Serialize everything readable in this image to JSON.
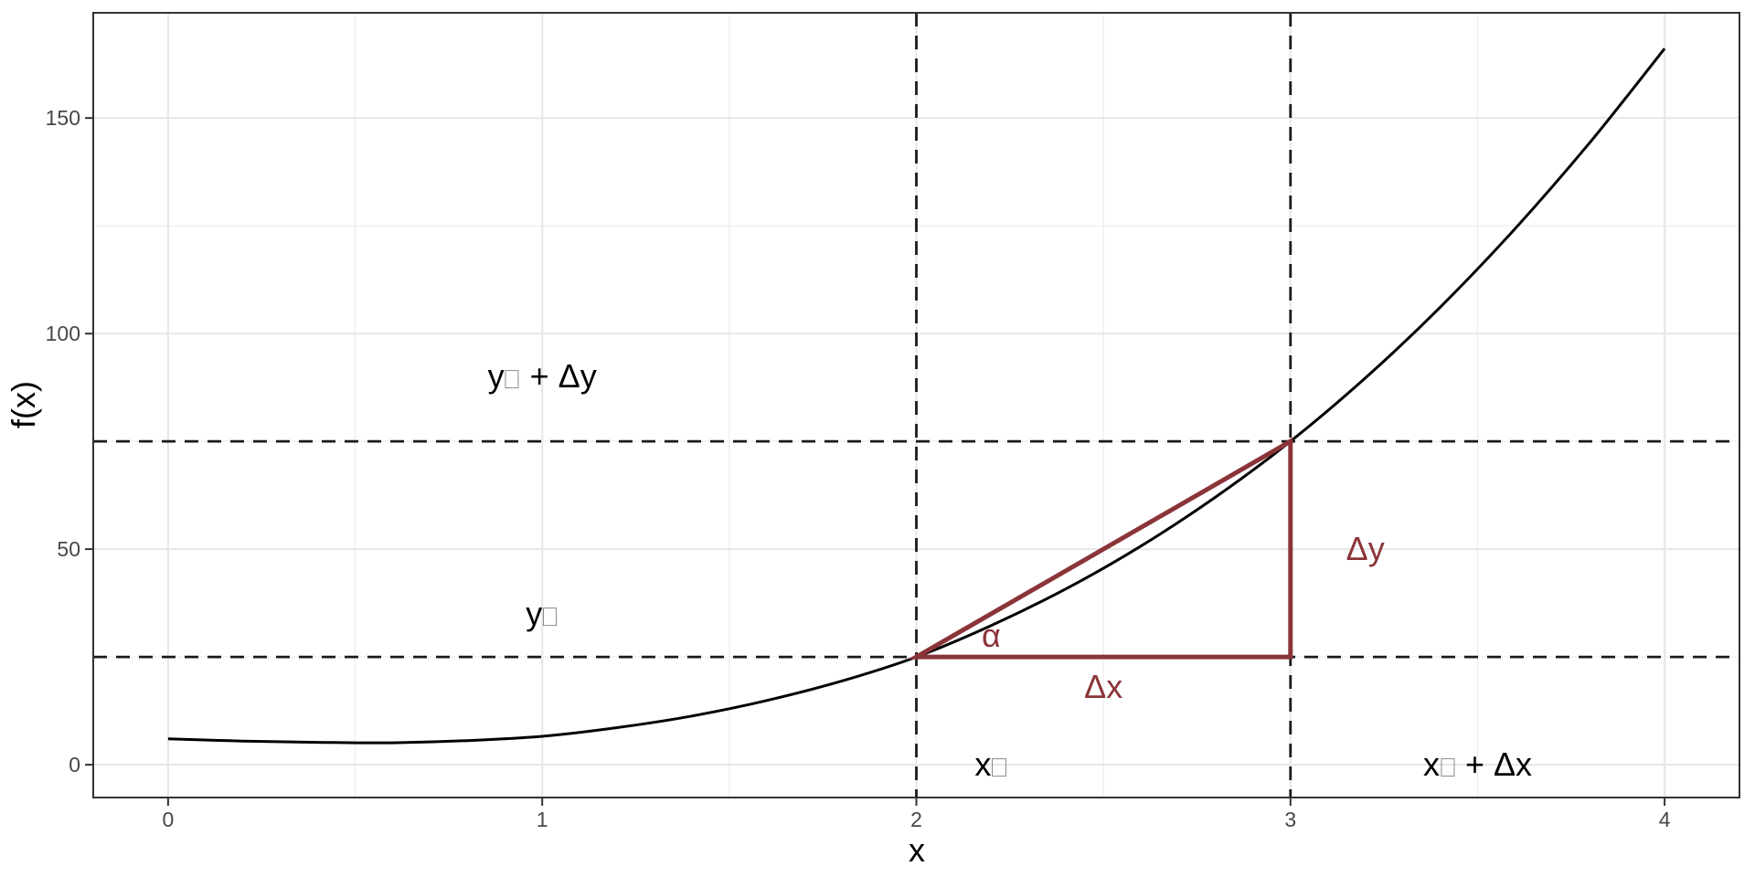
{
  "chart_data": {
    "type": "line",
    "title": "",
    "xlabel": "x",
    "ylabel": "f(x)",
    "xlim": [
      -0.2,
      4.2
    ],
    "ylim": [
      -7.6,
      174.4
    ],
    "x_major_ticks": [
      0,
      1,
      2,
      3,
      4
    ],
    "y_major_ticks": [
      0,
      50,
      100,
      150
    ],
    "x_minor_gridlines": [
      0.5,
      1.5,
      2.5,
      3.5
    ],
    "y_minor_gridlines": [
      25,
      75,
      125
    ],
    "grid": true,
    "legend": "none",
    "curve": {
      "name": "f(x)",
      "x": [
        0,
        0.2,
        0.4,
        0.6,
        0.8,
        1.0,
        1.2,
        1.4,
        1.6,
        1.8,
        2.0,
        2.2,
        2.4,
        2.6,
        2.8,
        3.0,
        3.2,
        3.4,
        3.6,
        3.8,
        4.0
      ],
      "y": [
        6.0,
        5.5,
        5.2,
        5.1,
        5.6,
        6.6,
        8.6,
        11.3,
        14.9,
        19.4,
        25.0,
        32.3,
        40.8,
        50.7,
        62.1,
        75.0,
        89.7,
        106.1,
        124.3,
        144.3,
        166.1
      ]
    },
    "guide_lines": {
      "style": "dashed",
      "vertical_x": [
        2,
        3
      ],
      "horizontal_y": [
        25,
        75
      ]
    },
    "secant_triangle": {
      "vertices_xy": [
        [
          2,
          25
        ],
        [
          3,
          25
        ],
        [
          3,
          75
        ]
      ]
    },
    "annotations": [
      {
        "name": "label-y0-plus-dy",
        "text": "y▯ + Δy",
        "x": 1.0,
        "y": 90,
        "color": "#000000"
      },
      {
        "name": "label-y0",
        "text": "y▯",
        "x": 1.0,
        "y": 35,
        "color": "#000000"
      },
      {
        "name": "label-x0",
        "text": "x▯",
        "x": 2.2,
        "y": 0,
        "color": "#000000"
      },
      {
        "name": "label-x0-plus-dx",
        "text": "x▯ + Δx",
        "x": 3.5,
        "y": 0,
        "color": "#000000"
      },
      {
        "name": "label-alpha",
        "text": "α",
        "x": 2.2,
        "y": 30,
        "color": "#8B3439"
      },
      {
        "name": "label-delta-x",
        "text": "Δx",
        "x": 2.5,
        "y": 18,
        "color": "#8B3439"
      },
      {
        "name": "label-delta-y",
        "text": "Δy",
        "x": 3.2,
        "y": 50,
        "color": "#8B3439"
      }
    ],
    "colors": {
      "background": "#FFFFFF",
      "panel_background": "#FFFFFF",
      "gridline_major": "#E8E8E8",
      "gridline_minor": "#EFEFEF",
      "panel_border": "#333333",
      "tick_mark": "#333333",
      "tick_label": "#474747",
      "axis_title": "#000000",
      "curve": "#000000",
      "dashed_line": "#1A1A1A",
      "accent_red": "#8B3439"
    }
  }
}
